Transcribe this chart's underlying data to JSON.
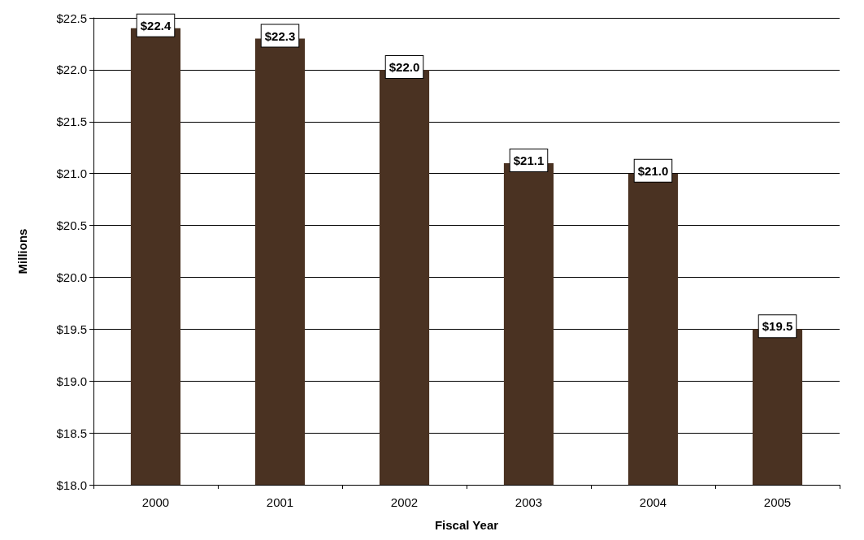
{
  "chart_data": {
    "type": "bar",
    "xlabel": "Fiscal Year",
    "ylabel": "Millions",
    "categories": [
      "2000",
      "2001",
      "2002",
      "2003",
      "2004",
      "2005"
    ],
    "series": [
      {
        "color": "#4a3222",
        "values": [
          22.4,
          22.3,
          22.0,
          21.1,
          21.0,
          19.5
        ],
        "value_labels": [
          "$22.4",
          "$22.3",
          "$22.0",
          "$21.1",
          "$21.0",
          "$19.5"
        ]
      }
    ],
    "ylim": [
      18,
      22.5
    ],
    "yticks": [
      {
        "value": 18,
        "label": "$18.0"
      },
      {
        "value": 18.5,
        "label": "$18.5"
      },
      {
        "value": 19,
        "label": "$19.0"
      },
      {
        "value": 19.5,
        "label": "$19.5"
      },
      {
        "value": 20,
        "label": "$20.0"
      },
      {
        "value": 20.5,
        "label": "$20.5"
      },
      {
        "value": 21,
        "label": "$21.0"
      },
      {
        "value": 21.5,
        "label": "$21.5"
      },
      {
        "value": 22,
        "label": "$22.0"
      },
      {
        "value": 22.5,
        "label": "$22.5"
      }
    ],
    "grid": "y"
  }
}
